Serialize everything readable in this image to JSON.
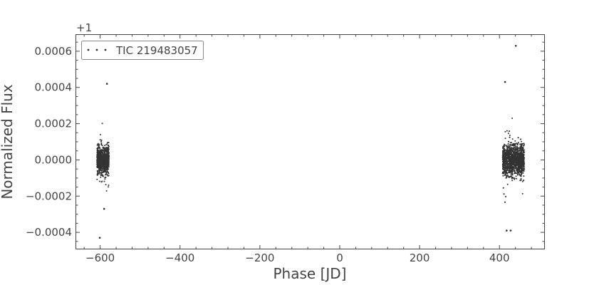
{
  "chart_data": {
    "type": "scatter",
    "xlabel": "Phase [JD]",
    "ylabel": "Normalized Flux",
    "y_offset_label": "+1",
    "xlim": [
      -660,
      512
    ],
    "ylim": [
      -0.00049,
      0.00069
    ],
    "x_ticks": [
      -600,
      -400,
      -200,
      0,
      200,
      400
    ],
    "x_tick_labels": [
      "−600",
      "−400",
      "−200",
      "0",
      "200",
      "400"
    ],
    "y_ticks": [
      -0.0004,
      -0.0002,
      0.0,
      0.0002,
      0.0004,
      0.0006
    ],
    "y_tick_labels": [
      "−0.0004",
      "−0.0002",
      "0.0000",
      "0.0002",
      "0.0004",
      "0.0006"
    ],
    "grid": false,
    "legend_position": "top-left",
    "series": [
      {
        "name": "TIC 219483057",
        "color": "#333333",
        "clusters": [
          {
            "x_range": [
              -608,
              -578
            ],
            "y_center": 0.0,
            "y_spread": 7e-05
          },
          {
            "x_range": [
              408,
              462
            ],
            "y_center": 0.0,
            "y_spread": 8e-05
          }
        ],
        "outliers": [
          {
            "x": 441,
            "y": 0.00063
          },
          {
            "x": 414,
            "y": 0.00043
          },
          {
            "x": -583,
            "y": 0.00042
          },
          {
            "x": -601,
            "y": -0.00043
          },
          {
            "x": 418,
            "y": -0.00039
          },
          {
            "x": 428,
            "y": -0.00039
          },
          {
            "x": -590,
            "y": -0.00027
          }
        ]
      }
    ]
  }
}
